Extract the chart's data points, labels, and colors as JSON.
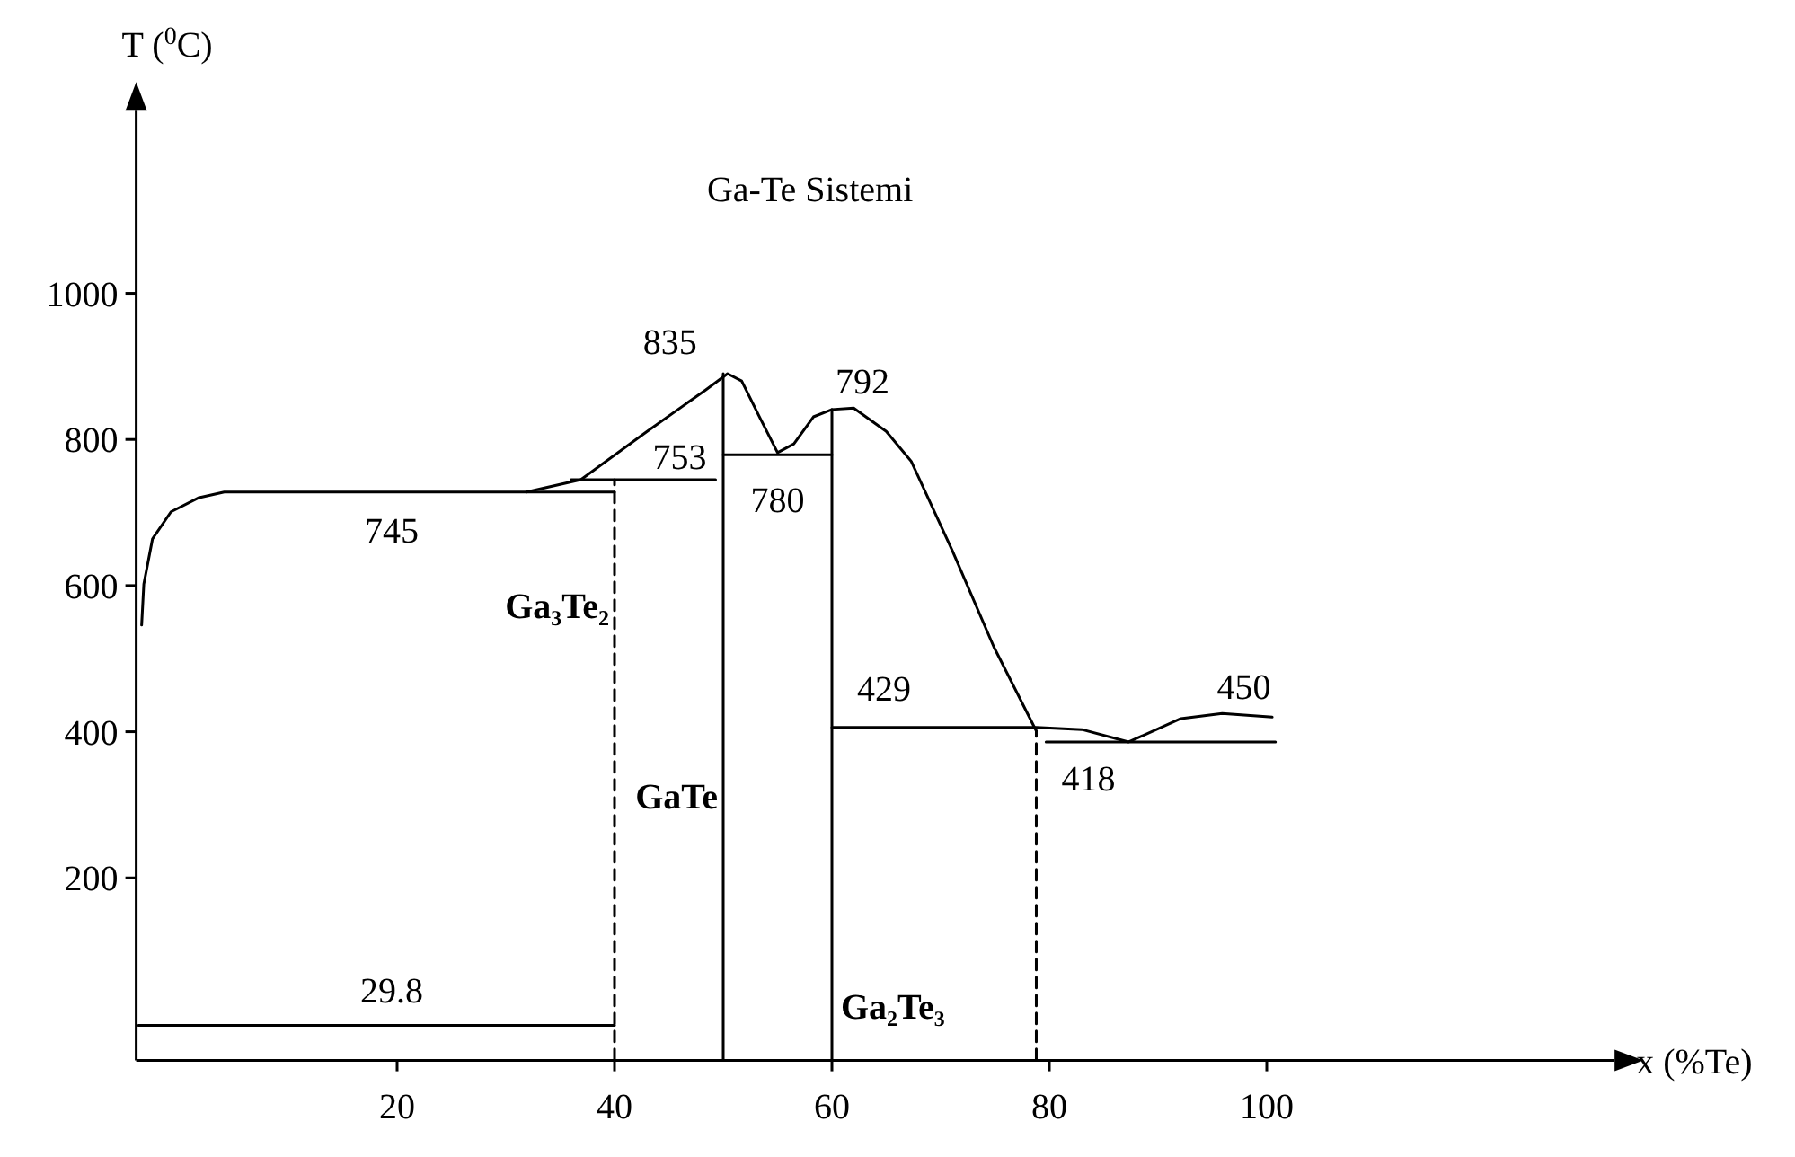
{
  "chart_data": {
    "type": "line",
    "title": "Ga-Te Sistemi",
    "xlabel": "x (%Te)",
    "ylabel": "T ($^{0}$C)",
    "xlim": [
      -4,
      132
    ],
    "xticks": [
      20,
      40,
      60,
      80,
      100
    ],
    "ylim": [
      -50,
      1250
    ],
    "yticks": [
      200,
      400,
      600,
      800,
      1000
    ],
    "grid": false,
    "marker": "none",
    "series": [
      {
        "color": "#000000",
        "x": [
          -3.5,
          -3.3,
          -2.5,
          -0.8,
          1.7,
          4.1,
          40
        ],
        "values": [
          546,
          602,
          664,
          701,
          720,
          728,
          728
        ]
      },
      {
        "color": "#000000",
        "x": [
          31.9,
          36.9,
          43,
          48.4,
          50.4,
          51.7,
          53.4,
          55,
          56.5,
          58.3,
          60,
          62,
          65,
          67.3,
          71.1,
          74.9,
          78.8
        ],
        "values": [
          728,
          745,
          811,
          868,
          890,
          880,
          829,
          782,
          794,
          831,
          841,
          843,
          811,
          770,
          647,
          516,
          401
        ]
      },
      {
        "color": "#000000",
        "x": [
          36,
          49.3
        ],
        "values": [
          745,
          745
        ]
      },
      {
        "color": "#000000",
        "x": [
          50,
          60
        ],
        "values": [
          779,
          779
        ]
      },
      {
        "color": "#000000",
        "x": [
          50,
          50
        ],
        "values": [
          -49,
          890
        ]
      },
      {
        "color": "#000000",
        "x": [
          60,
          60
        ],
        "values": [
          -49,
          841
        ]
      },
      {
        "color": "#000000",
        "line_style": "dashed",
        "x": [
          40,
          40
        ],
        "values": [
          -49,
          745
        ]
      },
      {
        "color": "#000000",
        "line_style": "dashed",
        "x": [
          78.8,
          78.8
        ],
        "values": [
          -49,
          401
        ]
      },
      {
        "color": "#000000",
        "x": [
          60,
          78.8,
          83,
          87.3,
          92.1,
          95.9,
          100.5
        ],
        "values": [
          406,
          406,
          403,
          386,
          418,
          425,
          420
        ]
      },
      {
        "color": "#000000",
        "x": [
          79.7,
          100.8
        ],
        "values": [
          386,
          386
        ]
      },
      {
        "color": "#000000",
        "x": [
          -3.8,
          40
        ],
        "values": [
          -2,
          -2
        ]
      }
    ],
    "annotations": [
      {
        "text": "835",
        "x": 50.4,
        "y": 890
      },
      {
        "text": "745",
        "x": 19.5,
        "y": 728
      },
      {
        "text": "753",
        "x": 46,
        "y": 745
      },
      {
        "text": "780",
        "x": 55,
        "y": 779
      },
      {
        "text": "792",
        "x": 60,
        "y": 841
      },
      {
        "text": "429",
        "x": 64.8,
        "y": 406
      },
      {
        "text": "418",
        "x": 83.6,
        "y": 386
      },
      {
        "text": "450",
        "x": 95.9,
        "y": 425
      },
      {
        "text": "29.8",
        "x": 19.5,
        "y": -2
      },
      {
        "text": "Ga₃Te₂",
        "x": 40,
        "y": 573
      },
      {
        "text": "GaTe",
        "x": 50,
        "y": 312
      },
      {
        "text": "Ga₂Te₃",
        "x": 60,
        "y": 25
      }
    ]
  }
}
